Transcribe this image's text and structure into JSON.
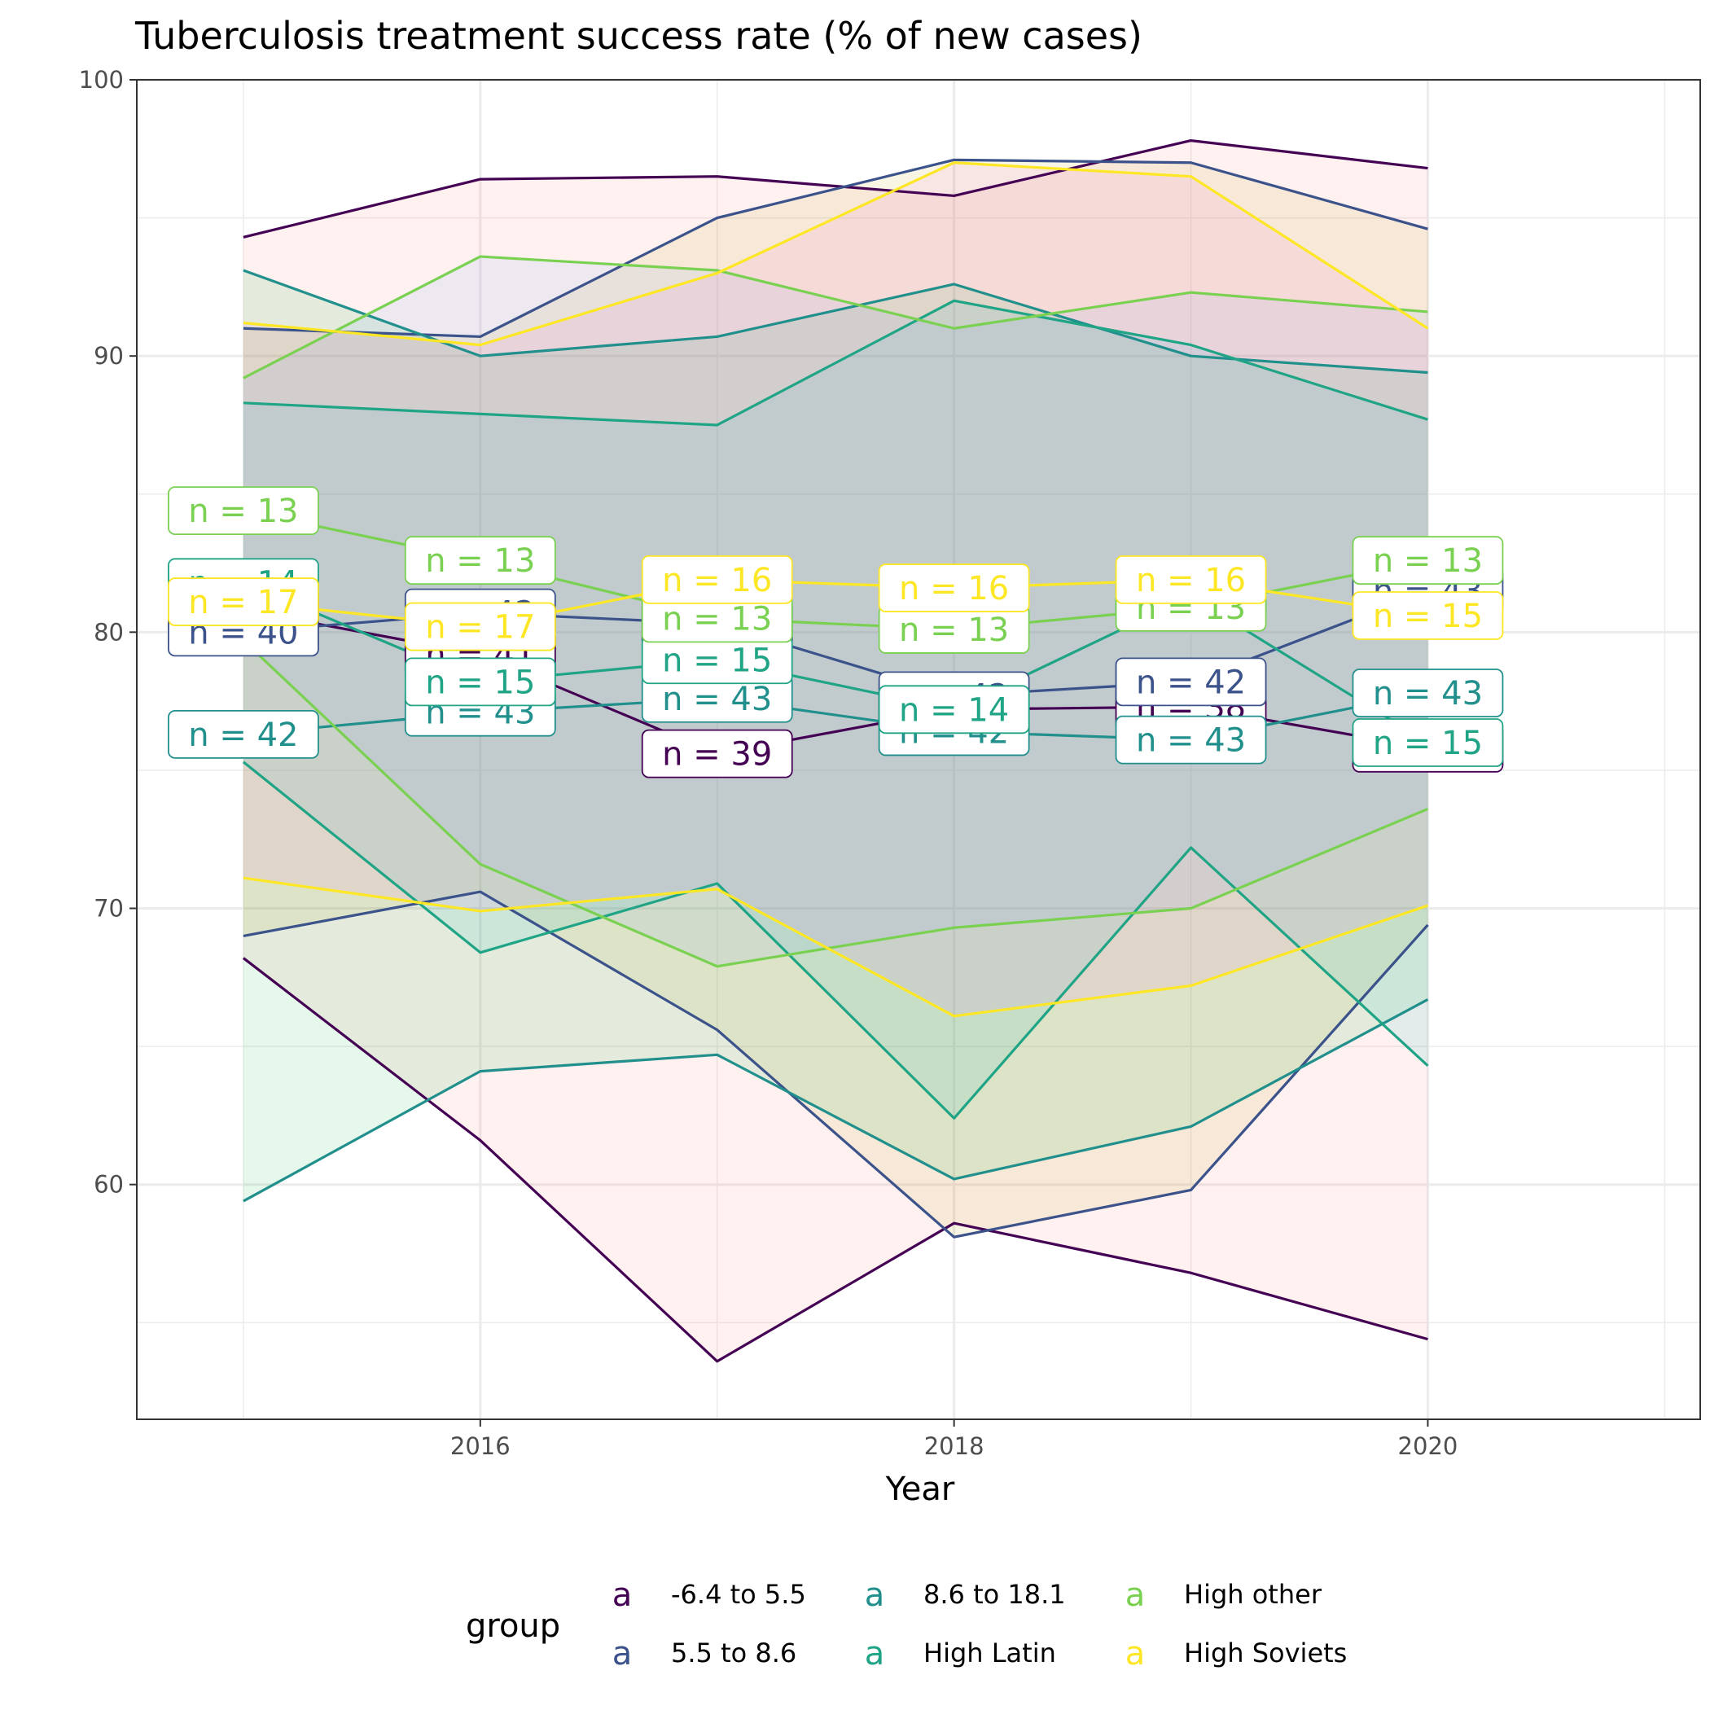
{
  "chart_data": {
    "type": "line",
    "title": "Tuberculosis treatment success rate (% of new cases)",
    "xlabel": "Year",
    "ylabel": "",
    "xlim": [
      2014.55,
      2021.15
    ],
    "ylim": [
      51.5,
      100
    ],
    "x_ticks": [
      2016,
      2018,
      2020
    ],
    "y_ticks": [
      60,
      70,
      80,
      90,
      100
    ],
    "grid": true,
    "legend_position": "bottom",
    "legend_title": "group",
    "legend_key_glyph": "a",
    "x": [
      2015,
      2016,
      2017,
      2018,
      2019,
      2020
    ],
    "series": [
      {
        "name": "-6.4 to 5.5",
        "color": "#440154",
        "mean": [
          80.8,
          79.2,
          75.6,
          77.2,
          77.3,
          75.8
        ],
        "upper": [
          94.3,
          96.4,
          96.5,
          95.8,
          97.8,
          96.8
        ],
        "lower": [
          68.2,
          61.6,
          53.6,
          58.6,
          56.8,
          54.4
        ],
        "n": [
          "n = 38",
          "n = 41",
          "n = 39",
          "n = 38",
          "n = 38",
          "n = 40"
        ]
      },
      {
        "name": "5.5 to 8.6",
        "color": "#3b528b",
        "mean": [
          80.0,
          80.7,
          80.3,
          77.7,
          78.2,
          81.5
        ],
        "upper": [
          91.0,
          90.7,
          95.0,
          97.1,
          97.0,
          94.6
        ],
        "lower": [
          69.0,
          70.6,
          65.6,
          58.1,
          59.8,
          69.4
        ],
        "n": [
          "n = 40",
          "n = 42",
          "n = 41",
          "n = 42",
          "n = 42",
          "n = 43"
        ]
      },
      {
        "name": "8.6 to 18.1",
        "color": "#21908c",
        "mean": [
          76.3,
          77.1,
          77.6,
          76.4,
          76.1,
          77.8
        ],
        "upper": [
          93.1,
          90.0,
          90.7,
          92.6,
          90.0,
          89.4
        ],
        "lower": [
          59.4,
          64.1,
          64.7,
          60.2,
          62.1,
          66.7
        ],
        "n": [
          "n = 42",
          "n = 43",
          "n = 43",
          "n = 42",
          "n = 43",
          "n = 43"
        ]
      },
      {
        "name": "High Latin",
        "color": "#20a486",
        "mean": [
          81.8,
          78.2,
          79.0,
          77.2,
          81.3,
          76.0
        ],
        "upper": [
          88.3,
          87.9,
          87.5,
          92.0,
          90.4,
          87.7
        ],
        "lower": [
          75.3,
          68.4,
          70.9,
          62.4,
          72.2,
          64.3
        ],
        "n": [
          "n = 14",
          "n = 15",
          "n = 15",
          "n = 14",
          "n = 16",
          "n = 15"
        ]
      },
      {
        "name": "High other",
        "color": "#7ad151",
        "mean": [
          84.4,
          82.6,
          80.5,
          80.1,
          80.9,
          82.6
        ],
        "upper": [
          89.2,
          93.6,
          93.1,
          91.0,
          92.3,
          91.6
        ],
        "lower": [
          79.7,
          71.6,
          67.9,
          69.3,
          70.0,
          73.6
        ],
        "n": [
          "n = 13",
          "n = 13",
          "n = 13",
          "n = 13",
          "n = 13",
          "n = 13"
        ]
      },
      {
        "name": "High Soviets",
        "color": "#fde725",
        "mean": [
          81.1,
          80.2,
          81.9,
          81.6,
          81.9,
          80.6
        ],
        "upper": [
          91.2,
          90.4,
          93.0,
          97.0,
          96.5,
          91.0
        ],
        "lower": [
          71.1,
          69.9,
          70.7,
          66.1,
          67.2,
          70.1
        ],
        "n": [
          "n = 17",
          "n = 17",
          "n = 16",
          "n = 16",
          "n = 16",
          "n = 15"
        ]
      }
    ]
  }
}
